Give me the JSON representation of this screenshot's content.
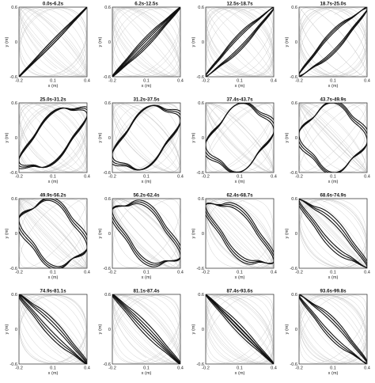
{
  "chart_data": [
    {
      "type": "line",
      "title": "0.0s-6.2s",
      "xlabel": "x (m)",
      "ylabel": "y (m)",
      "xlim": [
        -0.2,
        0.4
      ],
      "ylim": [
        -0.6,
        0.6
      ],
      "xticks": [
        "-0.2",
        "0.1",
        "0.4"
      ],
      "yticks": [
        "0.6",
        "0",
        "-0.6"
      ],
      "angle": 0.0,
      "width": 0.05,
      "spread": 0.02
    },
    {
      "type": "line",
      "title": "6.2s-12.5s",
      "xlabel": "x (m)",
      "ylabel": "y (m)",
      "xlim": [
        -0.2,
        0.4
      ],
      "ylim": [
        -0.6,
        0.6
      ],
      "xticks": [
        "-0.2",
        "0.1",
        "0.4"
      ],
      "yticks": [
        "0.6",
        "0",
        "-0.6"
      ],
      "angle": 0.1,
      "width": 0.1,
      "spread": 0.02
    },
    {
      "type": "line",
      "title": "12.5s-18.7s",
      "xlabel": "x (m)",
      "ylabel": "y (m)",
      "xlim": [
        -0.2,
        0.4
      ],
      "ylim": [
        -0.6,
        0.6
      ],
      "xticks": [
        "-0.2",
        "0.1",
        "0.4"
      ],
      "yticks": [
        "0.6",
        "0",
        "-0.6"
      ],
      "angle": 0.2,
      "width": 0.25,
      "spread": 0.02
    },
    {
      "type": "line",
      "title": "18.7s-25.0s",
      "xlabel": "x (m)",
      "ylabel": "y (m)",
      "xlim": [
        -0.2,
        0.4
      ],
      "ylim": [
        -0.6,
        0.6
      ],
      "xticks": [
        "-0.2",
        "0.1",
        "0.4"
      ],
      "yticks": [
        "0.6",
        "0",
        "-0.6"
      ],
      "angle": 0.3,
      "width": 0.45,
      "spread": 0.02
    },
    {
      "type": "line",
      "title": "25.0s-31.2s",
      "xlabel": "x (m)",
      "ylabel": "y (m)",
      "xlim": [
        -0.2,
        0.4
      ],
      "ylim": [
        -0.6,
        0.6
      ],
      "xticks": [
        "-0.2",
        "0.1",
        "0.4"
      ],
      "yticks": [
        "0.6",
        "0",
        "-0.6"
      ],
      "angle": 0.8,
      "width": 0.86,
      "spread": 0.02
    },
    {
      "type": "line",
      "title": "31.2s-37.5s",
      "xlabel": "x (m)",
      "ylabel": "y (m)",
      "xlim": [
        -0.2,
        0.4
      ],
      "ylim": [
        -0.6,
        0.6
      ],
      "xticks": [
        "-0.2",
        "0.1",
        "0.4"
      ],
      "yticks": [
        "0.6",
        "0",
        "-0.6"
      ],
      "angle": 1.0,
      "width": 0.96,
      "spread": 0.02
    },
    {
      "type": "line",
      "title": "37.4s-43.7s",
      "xlabel": "x (m)",
      "ylabel": "y (m)",
      "xlim": [
        -0.2,
        0.4
      ],
      "ylim": [
        -0.6,
        0.6
      ],
      "xticks": [
        "-0.2",
        "0.1",
        "0.4"
      ],
      "yticks": [
        "0.6",
        "0",
        "-0.6"
      ],
      "angle": 1.3,
      "width": 0.92,
      "spread": 0.02
    },
    {
      "type": "line",
      "title": "43.7s-49.9s",
      "xlabel": "x (m)",
      "ylabel": "y (m)",
      "xlim": [
        -0.2,
        0.4
      ],
      "ylim": [
        -0.6,
        0.6
      ],
      "xticks": [
        "-0.2",
        "0.1",
        "0.4"
      ],
      "yticks": [
        "0.6",
        "0",
        "-0.6"
      ],
      "angle": 1.6,
      "width": 0.8,
      "spread": 0.02
    },
    {
      "type": "line",
      "title": "49.9s-56.2s",
      "xlabel": "x (m)",
      "ylabel": "y (m)",
      "xlim": [
        -0.2,
        0.4
      ],
      "ylim": [
        -0.6,
        0.6
      ],
      "xticks": [
        "-0.2",
        "0.1",
        "0.4"
      ],
      "yticks": [
        "0.6",
        "0",
        "-0.6"
      ],
      "angle": 1.9,
      "width": 0.7,
      "spread": 0.025
    },
    {
      "type": "line",
      "title": "56.2s-62.4s",
      "xlabel": "x (m)",
      "ylabel": "y (m)",
      "xlim": [
        -0.2,
        0.4
      ],
      "ylim": [
        -0.6,
        0.6
      ],
      "xticks": [
        "-0.2",
        "0.1",
        "0.4"
      ],
      "yticks": [
        "0.6",
        "0",
        "-0.6"
      ],
      "angle": 2.2,
      "width": 0.55,
      "spread": 0.025
    },
    {
      "type": "line",
      "title": "62.4s-68.7s",
      "xlabel": "x (m)",
      "ylabel": "y (m)",
      "xlim": [
        -0.2,
        0.4
      ],
      "ylim": [
        -0.6,
        0.6
      ],
      "xticks": [
        "-0.2",
        "0.1",
        "0.4"
      ],
      "yticks": [
        "0.6",
        "0",
        "-0.6"
      ],
      "angle": 2.4,
      "width": 0.4,
      "spread": 0.025
    },
    {
      "type": "line",
      "title": "68.6s-74.9s",
      "xlabel": "x (m)",
      "ylabel": "y (m)",
      "xlim": [
        -0.2,
        0.4
      ],
      "ylim": [
        -0.6,
        0.6
      ],
      "xticks": [
        "-0.2",
        "0.1",
        "0.4"
      ],
      "yticks": [
        "0.6",
        "0",
        "-0.6"
      ],
      "angle": 2.75,
      "width": 0.18,
      "spread": 0.03
    },
    {
      "type": "line",
      "title": "74.9s-81.1s",
      "xlabel": "x (m)",
      "ylabel": "y (m)",
      "xlim": [
        -0.2,
        0.4
      ],
      "ylim": [
        -0.6,
        0.6
      ],
      "xticks": [
        "-0.2",
        "0.1",
        "0.4"
      ],
      "yticks": [
        "0.6",
        "0",
        "-0.6"
      ],
      "angle": 2.95,
      "width": 0.06,
      "spread": 0.03
    },
    {
      "type": "line",
      "title": "81.1s-87.4s",
      "xlabel": "x (m)",
      "ylabel": "y (m)",
      "xlim": [
        -0.2,
        0.4
      ],
      "ylim": [
        -0.6,
        0.6
      ],
      "xticks": [
        "-0.2",
        "0.1",
        "0.4"
      ],
      "yticks": [
        "0.6",
        "0",
        "-0.6"
      ],
      "angle": 3.05,
      "width": 0.12,
      "spread": 0.03
    },
    {
      "type": "line",
      "title": "87.4s-93.6s",
      "xlabel": "x (m)",
      "ylabel": "y (m)",
      "xlim": [
        -0.2,
        0.4
      ],
      "ylim": [
        -0.6,
        0.6
      ],
      "xticks": [
        "-0.2",
        "0.1",
        "0.4"
      ],
      "yticks": [
        "0.6",
        "0",
        "-0.6"
      ],
      "angle": 3.2,
      "width": 0.25,
      "spread": 0.03
    },
    {
      "type": "line",
      "title": "93.6s-99.8s",
      "xlabel": "x (m)",
      "ylabel": "y (m)",
      "xlim": [
        -0.2,
        0.4
      ],
      "ylim": [
        -0.6,
        0.6
      ],
      "xticks": [
        "-0.2",
        "0.1",
        "0.4"
      ],
      "yticks": [
        "0.6",
        "0",
        "-0.6"
      ],
      "angle": 3.4,
      "width": 0.4,
      "spread": 0.03
    }
  ],
  "colors": {
    "trajectory": "#111111",
    "history": "#c8c8c8",
    "axes": "#222222"
  }
}
